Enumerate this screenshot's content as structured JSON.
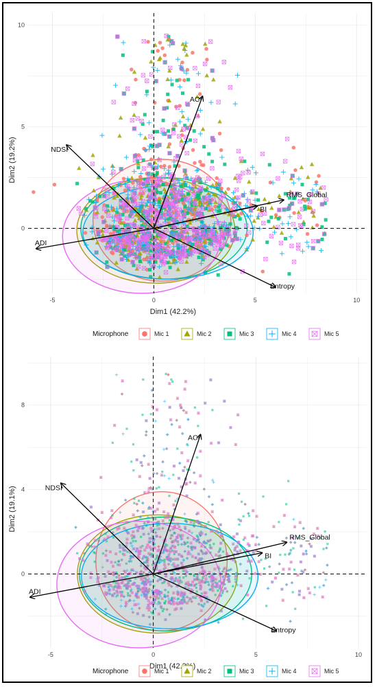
{
  "colors": {
    "mic1": "#F8766D",
    "mic2": "#A3A500",
    "mic3": "#00BF7D",
    "mic4": "#00B0F6",
    "mic5": "#E76BF3",
    "grid": "#e6e6e6",
    "arrow": "#000000"
  },
  "legend": {
    "title": "Microphone",
    "items": [
      {
        "label": "Mic 1",
        "shape": "circle",
        "color": "#F8766D"
      },
      {
        "label": "Mic 2",
        "shape": "triangle",
        "color": "#A3A500"
      },
      {
        "label": "Mic 3",
        "shape": "square",
        "color": "#00BF7D"
      },
      {
        "label": "Mic 4",
        "shape": "plus",
        "color": "#00B0F6"
      },
      {
        "label": "Mic 5",
        "shape": "boxcross",
        "color": "#E76BF3"
      }
    ]
  },
  "chart_data": [
    {
      "type": "scatter",
      "subtype": "PCA biplot",
      "xlabel": "Dim1 (42.2%)",
      "ylabel": "Dim2 (19.2%)",
      "xlim": [
        -6.2,
        10.5
      ],
      "ylim": [
        -3.2,
        10.6
      ],
      "xticks": [
        "-5",
        "0",
        "5",
        "10"
      ],
      "yticks": [
        "0",
        "5",
        "10"
      ],
      "grid": true,
      "legend_position": "bottom",
      "vectors": [
        {
          "name": "ACI",
          "x": 2.4,
          "y": 6.5
        },
        {
          "name": "NDSI",
          "x": -4.3,
          "y": 4.1
        },
        {
          "name": "RMS_Global",
          "x": 6.4,
          "y": 1.4
        },
        {
          "name": "BI",
          "x": 5.1,
          "y": 1.1
        },
        {
          "name": "ADI",
          "x": -5.8,
          "y": -1.0
        },
        {
          "name": "Entropy",
          "x": 6.0,
          "y": -2.9
        }
      ],
      "ellipses": [
        {
          "series": "Mic 1",
          "cx": 0.4,
          "cy": 0.4,
          "rx": 3.4,
          "ry": 3.0
        },
        {
          "series": "Mic 2",
          "cx": 0.1,
          "cy": -0.1,
          "rx": 3.9,
          "ry": 2.6
        },
        {
          "series": "Mic 3",
          "cx": 0.5,
          "cy": 0.0,
          "rx": 4.1,
          "ry": 2.5
        },
        {
          "series": "Mic 4",
          "cx": 0.7,
          "cy": -0.2,
          "rx": 4.2,
          "ry": 2.3
        },
        {
          "series": "Mic 5",
          "cx": -0.6,
          "cy": -0.4,
          "rx": 3.9,
          "ry": 2.8
        }
      ]
    },
    {
      "type": "scatter",
      "subtype": "PCA biplot",
      "xlabel": "Dim1 (42.2%)",
      "ylabel": "Dim2 (19.1%)",
      "xlim": [
        -6.1,
        10.4
      ],
      "ylim": [
        -3.5,
        10.3
      ],
      "xticks": [
        "-5",
        "0",
        "5",
        "10"
      ],
      "yticks": [
        "0",
        "4",
        "8"
      ],
      "grid": true,
      "legend_position": "bottom",
      "vectors": [
        {
          "name": "ACI",
          "x": 2.3,
          "y": 6.6
        },
        {
          "name": "NDSI",
          "x": -4.5,
          "y": 4.3
        },
        {
          "name": "RMS_Global",
          "x": 6.5,
          "y": 1.5
        },
        {
          "name": "BI",
          "x": 5.3,
          "y": 1.0
        },
        {
          "name": "ADI",
          "x": -6.0,
          "y": -1.1
        },
        {
          "name": "Entropy",
          "x": 6.0,
          "y": -2.7
        }
      ],
      "ellipses": [
        {
          "series": "Mic 1",
          "cx": 0.4,
          "cy": 0.6,
          "rx": 3.2,
          "ry": 3.3
        },
        {
          "series": "Mic 2",
          "cx": 0.2,
          "cy": 0.0,
          "rx": 3.9,
          "ry": 2.8
        },
        {
          "series": "Mic 3",
          "cx": 0.6,
          "cy": 0.0,
          "rx": 4.2,
          "ry": 2.7
        },
        {
          "series": "Mic 4",
          "cx": 0.8,
          "cy": -0.1,
          "rx": 4.3,
          "ry": 2.5
        },
        {
          "series": "Mic 5",
          "cx": -0.7,
          "cy": -0.5,
          "rx": 4.0,
          "ry": 3.0
        }
      ]
    }
  ]
}
